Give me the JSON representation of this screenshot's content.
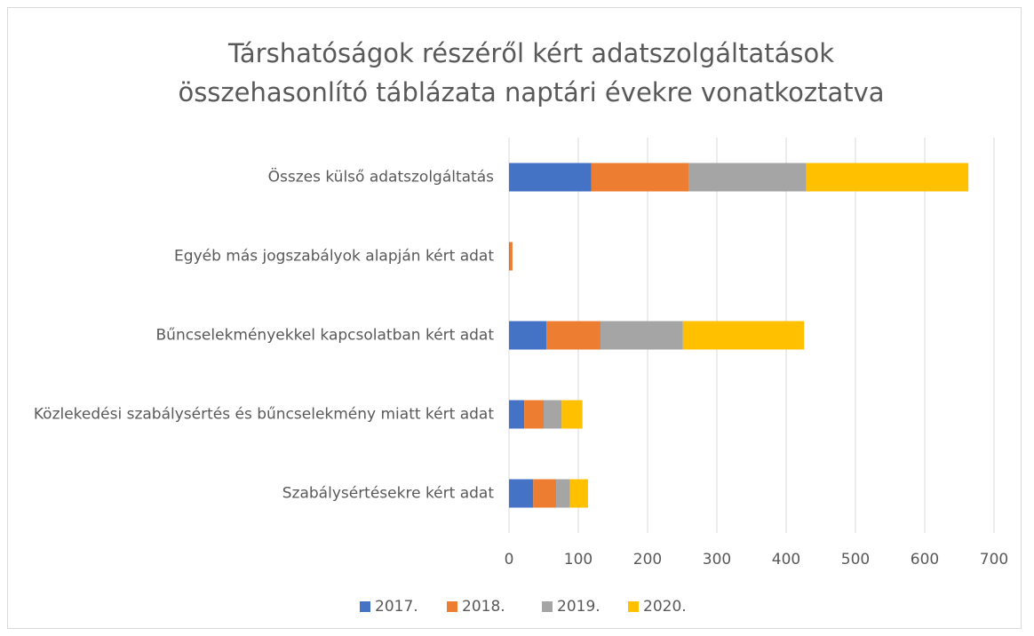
{
  "chart_data": {
    "type": "bar",
    "orientation": "horizontal",
    "stacked": true,
    "title": "Társhatóságok részéről kért adatszolgáltatások összehasonlító táblázata naptári évekre vonatkoztatva",
    "categories": [
      "Összes külső adatszolgáltatás",
      "Egyéb más jogszabályok alapján kért adat",
      "Bűncselekményekkel kapcsolatban kért adat",
      "Közlekedési szabálysértés és bűncselekmény miatt kért adat",
      "Szabálysértésekre kért adat"
    ],
    "series": [
      {
        "name": "2017.",
        "color": "#4472c4",
        "values": [
          119,
          1,
          54,
          22,
          35
        ]
      },
      {
        "name": "2018.",
        "color": "#ed7d31",
        "values": [
          140,
          4,
          78,
          28,
          33
        ]
      },
      {
        "name": "2019.",
        "color": "#a5a5a5",
        "values": [
          170,
          0,
          119,
          26,
          20
        ]
      },
      {
        "name": "2020.",
        "color": "#ffc000",
        "values": [
          234,
          0,
          175,
          30,
          26
        ]
      }
    ],
    "xlim": [
      0,
      700
    ],
    "xticks": [
      0,
      100,
      200,
      300,
      400,
      500,
      600,
      700
    ],
    "grid": true,
    "legend": "bottom"
  }
}
